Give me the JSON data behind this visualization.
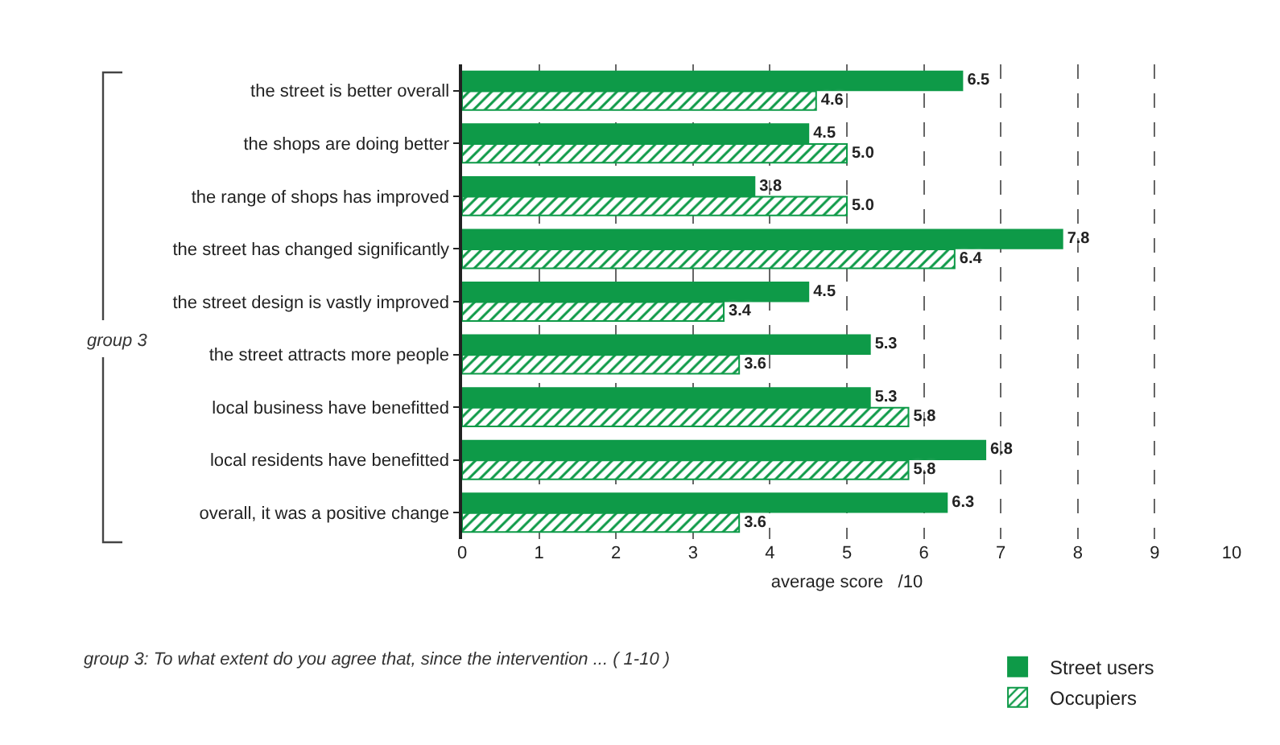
{
  "chart_data": {
    "type": "bar",
    "orientation": "horizontal",
    "categories": [
      "the street is better overall",
      "the shops are doing better",
      "the range of shops has improved",
      "the street has changed significantly",
      "the street design is vastly improved",
      "the street attracts more people",
      "local business have benefitted",
      "local residents have benefitted",
      "overall, it was a positive change"
    ],
    "series": [
      {
        "name": "Street users",
        "color": "#0e9a48",
        "values": [
          6.5,
          4.5,
          3.8,
          7.8,
          4.5,
          5.3,
          5.3,
          6.8,
          6.3
        ],
        "value_labels": [
          "6.5",
          "4.5",
          "3.8",
          "7.8",
          "4.5",
          "5.3",
          "5.3",
          "6.8",
          "6.3"
        ]
      },
      {
        "name": "Occupiers",
        "color": "#0e9a48",
        "values": [
          4.6,
          5.0,
          5.0,
          6.4,
          3.4,
          3.6,
          5.8,
          5.8,
          3.6
        ],
        "value_labels": [
          "4.6",
          "5.0",
          "5.0",
          "6.4",
          "3.4",
          "3.6",
          "5.8",
          "5.8",
          "3.6"
        ]
      }
    ],
    "xlabel": "average score   /10",
    "xlim": [
      0,
      10
    ],
    "xticks": [
      0,
      1,
      2,
      3,
      4,
      5,
      6,
      7,
      8,
      9,
      10
    ],
    "grid": "x",
    "legend": "bottom right",
    "annotations": [
      "group 3",
      "group 3: To what extent do you agree that, since the intervention ... ( 1-10 )"
    ]
  }
}
